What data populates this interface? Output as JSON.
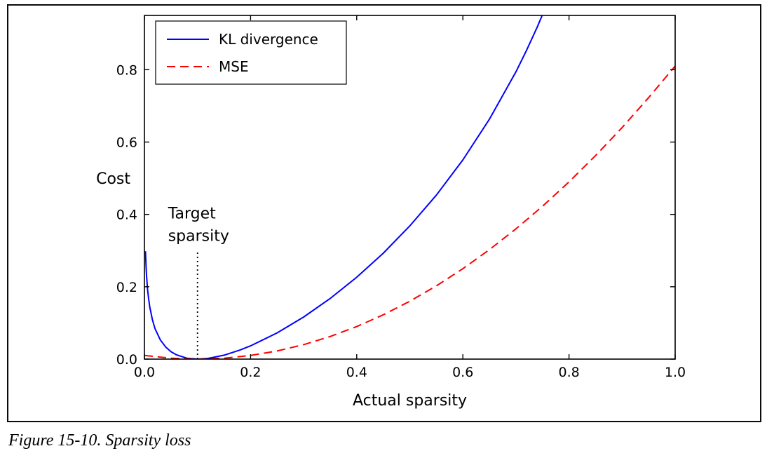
{
  "figure": {
    "caption": "Figure 15-10. Sparsity loss"
  },
  "chart_data": {
    "type": "line",
    "title": "",
    "xlabel": "Actual sparsity",
    "ylabel": "Cost",
    "xlim": [
      0.0,
      1.0
    ],
    "ylim": [
      0.0,
      0.95
    ],
    "xtick_values": [
      0.0,
      0.2,
      0.4,
      0.6,
      0.8,
      1.0
    ],
    "xtick_labels": [
      "0.0",
      "0.2",
      "0.4",
      "0.6",
      "0.8",
      "1.0"
    ],
    "ytick_values": [
      0.0,
      0.2,
      0.4,
      0.6,
      0.8
    ],
    "ytick_labels": [
      "0.0",
      "0.2",
      "0.4",
      "0.6",
      "0.8"
    ],
    "grid": false,
    "legend_position": "upper-left",
    "axis_color": "#000000",
    "background_color": "#ffffff",
    "series": [
      {
        "name": "KL divergence",
        "color": "#0000ff",
        "line_style": "solid",
        "x": [
          0.002,
          0.003,
          0.004,
          0.006,
          0.008,
          0.01,
          0.015,
          0.02,
          0.03,
          0.04,
          0.05,
          0.06,
          0.08,
          0.1,
          0.12,
          0.15,
          0.18,
          0.2,
          0.25,
          0.3,
          0.35,
          0.4,
          0.45,
          0.5,
          0.55,
          0.6,
          0.65,
          0.7,
          0.72,
          0.74,
          0.76
        ],
        "y": [
          0.2982,
          0.2585,
          0.2307,
          0.1919,
          0.165,
          0.1445,
          0.1085,
          0.0843,
          0.0529,
          0.0336,
          0.0206,
          0.012,
          0.0025,
          0.0,
          0.002,
          0.0109,
          0.025,
          0.0367,
          0.0725,
          0.1163,
          0.1676,
          0.2263,
          0.2928,
          0.3681,
          0.4533,
          0.5506,
          0.6628,
          0.7941,
          0.8534,
          0.9174,
          0.9868
        ]
      },
      {
        "name": "MSE",
        "color": "#ff0000",
        "line_style": "dashed",
        "x": [
          0.0,
          0.05,
          0.1,
          0.15,
          0.2,
          0.25,
          0.3,
          0.35,
          0.4,
          0.45,
          0.5,
          0.55,
          0.6,
          0.65,
          0.7,
          0.75,
          0.8,
          0.85,
          0.9,
          0.95,
          1.0
        ],
        "y": [
          0.01,
          0.0025,
          0.0,
          0.0025,
          0.01,
          0.0225,
          0.04,
          0.0625,
          0.09,
          0.1225,
          0.16,
          0.2025,
          0.25,
          0.3025,
          0.36,
          0.4225,
          0.49,
          0.5625,
          0.64,
          0.7225,
          0.81
        ]
      }
    ],
    "annotation": {
      "label_lines": [
        "Target",
        "sparsity"
      ],
      "x": 0.1,
      "line_style": "dotted",
      "line_from_y": 0.0,
      "line_to_y": 0.3
    }
  }
}
